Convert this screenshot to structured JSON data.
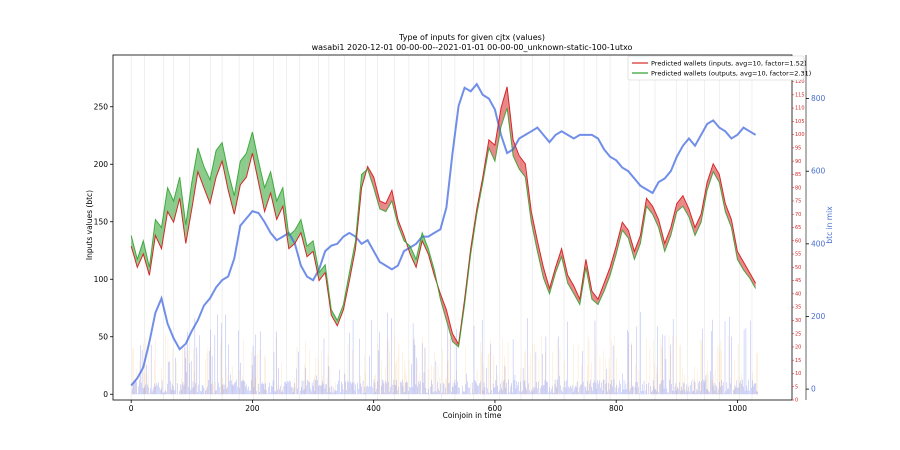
{
  "chart_data": {
    "type": "line",
    "title": "Type of inputs for given cjtx (values)",
    "subtitle": "wasabi1 2020-12-01 00-00-00--2021-01-01 00-00-00_unknown-static-100-1utxo",
    "xlabel": "Coinjoin in time",
    "ylabel": "Inputs values (btc)",
    "ylabel_right": "btc in mix",
    "xlim": [
      -30,
      1090
    ],
    "ylim_left": [
      -5,
      295
    ],
    "ylim_right_red": [
      0,
      130
    ],
    "ylim_right_blue": [
      -30,
      920
    ],
    "x_ticks": [
      "0",
      "200",
      "400",
      "600",
      "800",
      "1000"
    ],
    "y_ticks_left": [
      "0",
      "50",
      "100",
      "150",
      "200",
      "250"
    ],
    "y_ticks_right_red": [
      "0",
      "5",
      "10",
      "15",
      "20",
      "25",
      "30",
      "35",
      "40",
      "45",
      "50",
      "55",
      "60",
      "65",
      "70",
      "75",
      "80",
      "85",
      "90",
      "95",
      "100",
      "105",
      "110",
      "115",
      "120"
    ],
    "y_ticks_right_blue": [
      "0",
      "200",
      "400",
      "600",
      "800"
    ],
    "legend": [
      {
        "label": "Predicted wallets (inputs, avg=10, factor=1.52)",
        "color": "#d62728"
      },
      {
        "label": "Predicted wallets (outputs, avg=10, factor=2.31)",
        "color": "#2ca02c"
      }
    ],
    "legend_position": "top-right",
    "series_colors": {
      "inputs": "#d62728",
      "outputs": "#2ca02c",
      "btc_in_mix": "#4169e1",
      "bars_inputs": "#4a5ae8",
      "bars_outputs": "#f5b565"
    },
    "series": [
      {
        "name": "Predicted wallets (inputs)",
        "axis": "right-red",
        "x": [
          0,
          10,
          20,
          30,
          40,
          50,
          60,
          70,
          80,
          90,
          100,
          110,
          120,
          130,
          140,
          150,
          160,
          170,
          180,
          190,
          200,
          210,
          220,
          230,
          240,
          250,
          260,
          270,
          280,
          290,
          300,
          310,
          320,
          330,
          340,
          350,
          360,
          370,
          380,
          390,
          400,
          410,
          420,
          430,
          440,
          450,
          460,
          470,
          480,
          490,
          500,
          510,
          520,
          530,
          540,
          550,
          560,
          570,
          580,
          590,
          600,
          610,
          620,
          630,
          640,
          650,
          660,
          670,
          680,
          690,
          700,
          710,
          720,
          730,
          740,
          750,
          760,
          770,
          780,
          790,
          800,
          810,
          820,
          830,
          840,
          850,
          860,
          870,
          880,
          890,
          900,
          910,
          920,
          930,
          940,
          950,
          960,
          970,
          980,
          990,
          1000,
          1010,
          1020,
          1030
        ],
        "values": [
          58,
          50,
          55,
          47,
          62,
          57,
          71,
          67,
          76,
          59,
          72,
          86,
          80,
          74,
          84,
          90,
          79,
          70,
          81,
          84,
          93,
          82,
          71,
          78,
          68,
          73,
          57,
          59,
          63,
          54,
          56,
          45,
          48,
          32,
          28,
          34,
          45,
          57,
          80,
          88,
          84,
          75,
          74,
          79,
          68,
          62,
          55,
          50,
          60,
          55,
          47,
          40,
          34,
          25,
          21,
          38,
          57,
          72,
          84,
          98,
          96,
          110,
          118,
          98,
          92,
          89,
          71,
          60,
          50,
          42,
          50,
          57,
          47,
          43,
          38,
          53,
          41,
          38,
          44,
          50,
          58,
          67,
          64,
          56,
          62,
          76,
          73,
          68,
          59,
          65,
          74,
          77,
          72,
          65,
          70,
          82,
          89,
          85,
          74,
          68,
          56,
          52,
          48,
          44
        ]
      },
      {
        "name": "Predicted wallets (outputs)",
        "axis": "right-red",
        "x": [
          0,
          10,
          20,
          30,
          40,
          50,
          60,
          70,
          80,
          90,
          100,
          110,
          120,
          130,
          140,
          150,
          160,
          170,
          180,
          190,
          200,
          210,
          220,
          230,
          240,
          250,
          260,
          270,
          280,
          290,
          300,
          310,
          320,
          330,
          340,
          350,
          360,
          370,
          380,
          390,
          400,
          410,
          420,
          430,
          440,
          450,
          460,
          470,
          480,
          490,
          500,
          510,
          520,
          530,
          540,
          550,
          560,
          570,
          580,
          590,
          600,
          610,
          620,
          630,
          640,
          650,
          660,
          670,
          680,
          690,
          700,
          710,
          720,
          730,
          740,
          750,
          760,
          770,
          780,
          790,
          800,
          810,
          820,
          830,
          840,
          850,
          860,
          870,
          880,
          890,
          900,
          910,
          920,
          930,
          940,
          950,
          960,
          970,
          980,
          990,
          1000,
          1010,
          1020,
          1030
        ],
        "values": [
          62,
          53,
          60,
          50,
          68,
          65,
          80,
          75,
          84,
          66,
          82,
          95,
          88,
          83,
          94,
          97,
          86,
          77,
          90,
          93,
          101,
          90,
          80,
          86,
          75,
          80,
          62,
          64,
          68,
          58,
          60,
          48,
          51,
          34,
          30,
          36,
          48,
          60,
          85,
          87,
          80,
          72,
          71,
          75,
          66,
          60,
          58,
          53,
          63,
          57,
          49,
          38,
          30,
          22,
          20,
          36,
          55,
          70,
          82,
          95,
          90,
          103,
          110,
          92,
          87,
          84,
          67,
          56,
          46,
          40,
          48,
          54,
          44,
          40,
          36,
          50,
          38,
          36,
          41,
          47,
          55,
          64,
          61,
          53,
          59,
          73,
          70,
          65,
          56,
          62,
          71,
          73,
          69,
          62,
          67,
          79,
          86,
          82,
          71,
          65,
          53,
          49,
          46,
          42
        ]
      },
      {
        "name": "btc in mix",
        "axis": "right-blue",
        "x": [
          0,
          10,
          20,
          30,
          40,
          50,
          60,
          70,
          80,
          90,
          100,
          110,
          120,
          130,
          140,
          150,
          160,
          170,
          180,
          190,
          200,
          210,
          220,
          230,
          240,
          250,
          260,
          270,
          280,
          290,
          300,
          310,
          320,
          330,
          340,
          350,
          360,
          370,
          380,
          390,
          400,
          410,
          420,
          430,
          440,
          450,
          460,
          470,
          480,
          490,
          500,
          510,
          520,
          530,
          540,
          550,
          560,
          570,
          580,
          590,
          600,
          610,
          620,
          630,
          640,
          650,
          660,
          670,
          680,
          690,
          700,
          710,
          720,
          730,
          740,
          750,
          760,
          770,
          780,
          790,
          800,
          810,
          820,
          830,
          840,
          850,
          860,
          870,
          880,
          890,
          900,
          910,
          920,
          930,
          940,
          950,
          960,
          970,
          980,
          990,
          1000,
          1010,
          1020,
          1030
        ],
        "values": [
          10,
          30,
          60,
          130,
          210,
          250,
          180,
          140,
          110,
          125,
          160,
          190,
          230,
          250,
          280,
          300,
          310,
          360,
          450,
          470,
          490,
          485,
          460,
          430,
          410,
          420,
          430,
          400,
          340,
          310,
          300,
          330,
          380,
          395,
          400,
          420,
          430,
          420,
          400,
          410,
          380,
          350,
          340,
          330,
          340,
          380,
          390,
          400,
          420,
          420,
          430,
          440,
          500,
          650,
          780,
          830,
          820,
          840,
          810,
          800,
          770,
          700,
          650,
          660,
          690,
          700,
          710,
          720,
          700,
          680,
          700,
          710,
          700,
          690,
          700,
          700,
          700,
          690,
          660,
          640,
          630,
          610,
          600,
          580,
          560,
          550,
          540,
          570,
          580,
          600,
          640,
          670,
          690,
          670,
          700,
          730,
          740,
          720,
          710,
          690,
          700,
          720,
          710,
          700
        ]
      }
    ]
  }
}
